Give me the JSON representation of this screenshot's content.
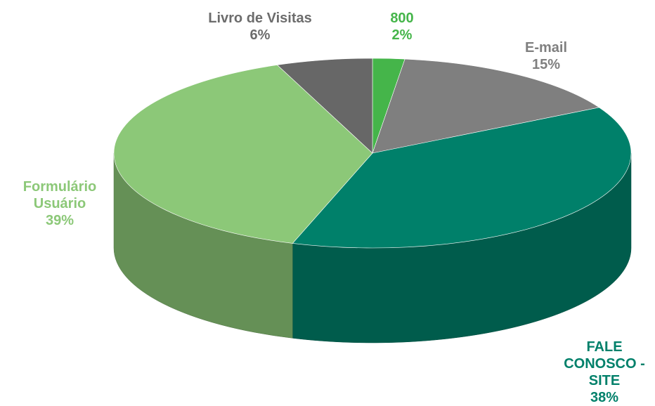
{
  "chart_data": {
    "type": "pie3d",
    "categories": [
      "800",
      "E-mail",
      "FALE CONOSCO - SITE",
      "Formulário Usuário",
      "Livro de Visitas"
    ],
    "values": [
      2,
      15,
      38,
      39,
      6
    ],
    "value_labels": [
      "2%",
      "15%",
      "38%",
      "39%",
      "6%"
    ],
    "colors": [
      "#45b54a",
      "#7f7f7f",
      "#00806a",
      "#8cc878",
      "#676767"
    ]
  }
}
